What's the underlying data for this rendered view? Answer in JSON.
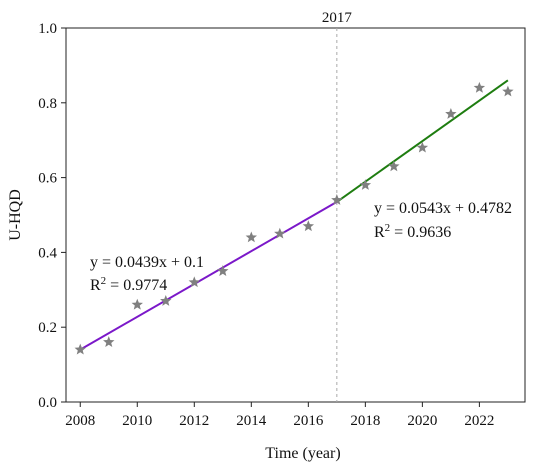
{
  "chart_data": {
    "type": "scatter",
    "title": "",
    "xlabel": "Time (year)",
    "ylabel": "U-HQD",
    "xlim": [
      2007.5,
      2023.6
    ],
    "ylim": [
      0.0,
      1.0
    ],
    "xticks": [
      2008,
      2010,
      2012,
      2014,
      2016,
      2018,
      2020,
      2022
    ],
    "yticks": [
      0.0,
      0.2,
      0.4,
      0.6,
      0.8,
      1.0
    ],
    "xtick_labels": [
      "2008",
      "2010",
      "2012",
      "2014",
      "2016",
      "2018",
      "2020",
      "2022"
    ],
    "ytick_labels": [
      "0.0",
      "0.2",
      "0.4",
      "0.6",
      "0.8",
      "1.0"
    ],
    "grid": false,
    "marker": "star",
    "marker_color": "#808080",
    "points": [
      {
        "x": 2008,
        "y": 0.14
      },
      {
        "x": 2009,
        "y": 0.16
      },
      {
        "x": 2010,
        "y": 0.26
      },
      {
        "x": 2011,
        "y": 0.27
      },
      {
        "x": 2012,
        "y": 0.32
      },
      {
        "x": 2013,
        "y": 0.35
      },
      {
        "x": 2014,
        "y": 0.44
      },
      {
        "x": 2015,
        "y": 0.45
      },
      {
        "x": 2016,
        "y": 0.47
      },
      {
        "x": 2017,
        "y": 0.54
      },
      {
        "x": 2018,
        "y": 0.58
      },
      {
        "x": 2019,
        "y": 0.63
      },
      {
        "x": 2020,
        "y": 0.68
      },
      {
        "x": 2021,
        "y": 0.77
      },
      {
        "x": 2022,
        "y": 0.84
      },
      {
        "x": 2023,
        "y": 0.83
      }
    ],
    "fit_lines": [
      {
        "x_start": 2008,
        "x_end": 2017,
        "y_start": 0.14,
        "y_end": 0.535,
        "color": "#7b18c9"
      },
      {
        "x_start": 2017,
        "x_end": 2023,
        "y_start": 0.535,
        "y_end": 0.86,
        "color": "#1e7d10"
      }
    ],
    "vline": {
      "x": 2017,
      "label": "2017",
      "style": "dashed",
      "color": "#aaaaaa"
    },
    "annotations": [
      {
        "id": "left",
        "equation": "y = 0.0439x + 0.1",
        "r2_prefix": "R",
        "r2_sup": "2",
        "r2_value": " = 0.9774"
      },
      {
        "id": "right",
        "equation": "y = 0.0543x + 0.4782",
        "r2_prefix": "R",
        "r2_sup": "2",
        "r2_value": " = 0.9636"
      }
    ]
  }
}
